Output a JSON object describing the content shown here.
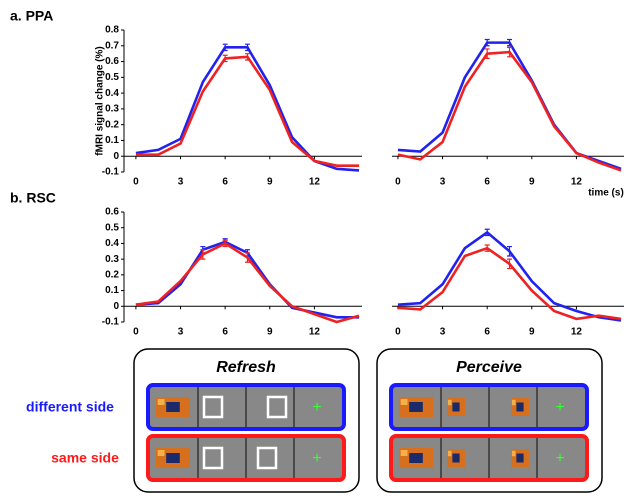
{
  "chart_data": [
    {
      "type": "line",
      "panel": "a. PPA",
      "y_label": "fMRI signal change (%)",
      "x": [
        0,
        1.5,
        3,
        4.5,
        6,
        7.5,
        9,
        10.5,
        12,
        13.5,
        15
      ],
      "xlim": [
        -0.8,
        15.2
      ],
      "ylim": [
        -0.1,
        0.8
      ],
      "xticks": [
        0,
        3,
        6,
        9,
        12
      ],
      "yticks": [
        0.8,
        0.7,
        0.6,
        0.5,
        0.4,
        0.3,
        0.2,
        0.1,
        0,
        -0.1
      ],
      "series": [
        {
          "color": "#2222ee",
          "values": [
            0.02,
            0.04,
            0.11,
            0.47,
            0.69,
            0.69,
            0.45,
            0.12,
            -0.03,
            -0.08,
            -0.09
          ],
          "errors": [
            null,
            null,
            null,
            null,
            0.02,
            0.02,
            null,
            null,
            null,
            null,
            null
          ]
        },
        {
          "color": "#ee2222",
          "values": [
            0.01,
            0.01,
            0.08,
            0.41,
            0.62,
            0.63,
            0.42,
            0.09,
            -0.03,
            -0.06,
            -0.06
          ],
          "errors": [
            null,
            null,
            null,
            null,
            0.02,
            0.02,
            null,
            null,
            null,
            null,
            null
          ]
        }
      ]
    },
    {
      "type": "line",
      "x_label": "time (s)",
      "x": [
        0,
        1.5,
        3,
        4.5,
        6,
        7.5,
        9,
        10.5,
        12,
        13.5,
        15
      ],
      "xlim": [
        -0.4,
        15.2
      ],
      "ylim": [
        -0.1,
        0.8
      ],
      "xticks": [
        0,
        3,
        6,
        9,
        12
      ],
      "series": [
        {
          "color": "#2222ee",
          "values": [
            0.04,
            0.03,
            0.15,
            0.5,
            0.72,
            0.72,
            0.48,
            0.2,
            0.02,
            -0.03,
            -0.08
          ],
          "errors": [
            null,
            null,
            null,
            null,
            0.02,
            0.02,
            null,
            null,
            null,
            null,
            null
          ]
        },
        {
          "color": "#ee2222",
          "values": [
            0.01,
            -0.02,
            0.09,
            0.44,
            0.65,
            0.66,
            0.47,
            0.19,
            0.02,
            -0.04,
            -0.09
          ],
          "errors": [
            null,
            null,
            null,
            null,
            0.03,
            0.03,
            null,
            null,
            null,
            null,
            null
          ]
        }
      ]
    },
    {
      "type": "line",
      "panel": "b. RSC",
      "x": [
        0,
        1.5,
        3,
        4.5,
        6,
        7.5,
        9,
        10.5,
        12,
        13.5,
        15
      ],
      "xlim": [
        -0.8,
        15.2
      ],
      "ylim": [
        -0.1,
        0.6
      ],
      "xticks": [
        0,
        3,
        6,
        9,
        12
      ],
      "yticks": [
        0.6,
        0.5,
        0.4,
        0.3,
        0.2,
        0.1,
        0,
        -0.1
      ],
      "series": [
        {
          "color": "#2222ee",
          "values": [
            0.01,
            0.02,
            0.14,
            0.36,
            0.41,
            0.34,
            0.14,
            -0.01,
            -0.04,
            -0.07,
            -0.07
          ],
          "errors": [
            null,
            null,
            null,
            0.02,
            0.02,
            0.02,
            null,
            null,
            null,
            null,
            null
          ]
        },
        {
          "color": "#ee2222",
          "values": [
            0.01,
            0.03,
            0.16,
            0.33,
            0.4,
            0.31,
            0.13,
            0,
            -0.05,
            -0.1,
            -0.06
          ],
          "errors": [
            null,
            null,
            null,
            0.03,
            0.02,
            0.03,
            null,
            null,
            null,
            null,
            null
          ]
        }
      ]
    },
    {
      "type": "line",
      "x": [
        0,
        1.5,
        3,
        4.5,
        6,
        7.5,
        9,
        10.5,
        12,
        13.5,
        15
      ],
      "xlim": [
        -0.4,
        15.2
      ],
      "ylim": [
        -0.1,
        0.6
      ],
      "xticks": [
        0,
        3,
        6,
        9,
        12
      ],
      "series": [
        {
          "color": "#2222ee",
          "values": [
            0.01,
            0.02,
            0.14,
            0.37,
            0.47,
            0.35,
            0.16,
            0.02,
            -0.03,
            -0.07,
            -0.09
          ],
          "errors": [
            null,
            null,
            null,
            null,
            0.02,
            0.03,
            null,
            null,
            null,
            null,
            null
          ]
        },
        {
          "color": "#ee2222",
          "values": [
            -0.01,
            -0.02,
            0.09,
            0.32,
            0.37,
            0.27,
            0.1,
            -0.03,
            -0.08,
            -0.06,
            -0.08
          ],
          "errors": [
            null,
            null,
            null,
            null,
            0.02,
            0.03,
            null,
            null,
            null,
            null,
            null
          ]
        }
      ]
    }
  ],
  "diagram": {
    "panels": [
      {
        "title": "Refresh"
      },
      {
        "title": "Perceive"
      }
    ],
    "rows": [
      {
        "label": "different side",
        "color": "#1a1aff"
      },
      {
        "label": "same side",
        "color": "#ff1a1a"
      }
    ],
    "fixation": "+"
  }
}
